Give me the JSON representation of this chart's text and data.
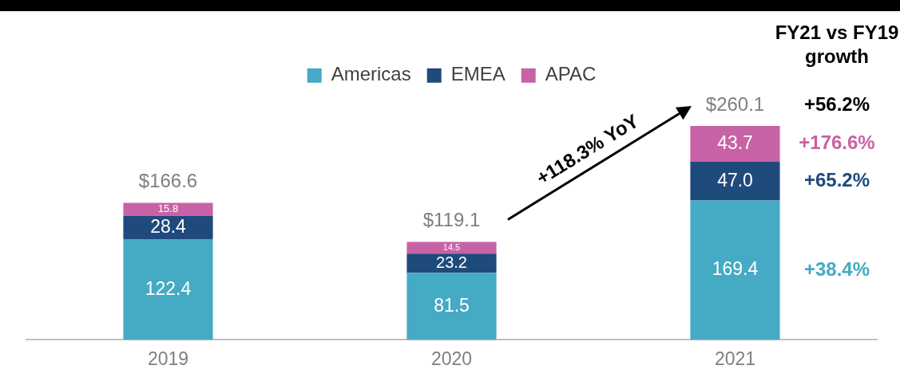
{
  "chart_data": {
    "type": "bar",
    "stacked": true,
    "legend": "top",
    "categories": [
      "2019",
      "2020",
      "2021"
    ],
    "series": [
      {
        "name": "Americas",
        "color": "#45aac4",
        "values": [
          122.4,
          81.5,
          169.4
        ],
        "value_labels": [
          "122.4",
          "81.5",
          "169.4"
        ]
      },
      {
        "name": "EMEA",
        "color": "#1f4a7c",
        "values": [
          28.4,
          23.2,
          47.0
        ],
        "value_labels": [
          "28.4",
          "23.2",
          "47.0"
        ]
      },
      {
        "name": "APAC",
        "color": "#c862a6",
        "values": [
          15.8,
          14.5,
          43.7
        ],
        "value_labels": [
          "15.8",
          "14.5",
          "43.7"
        ]
      }
    ],
    "totals": [
      "$166.6",
      "$119.1",
      "$260.1"
    ],
    "annotations": [
      "FY21 vs FY19 growth",
      "+118.3% YoY",
      "+56.2%",
      "+176.6%",
      "+65.2%",
      "+38.4%"
    ]
  }
}
